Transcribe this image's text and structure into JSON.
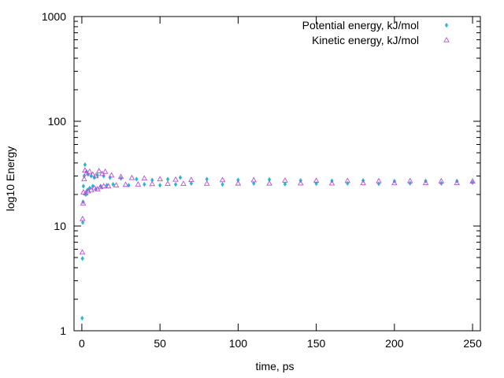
{
  "chart_data": {
    "type": "scatter",
    "title": "",
    "xlabel": "time, ps",
    "ylabel": "log10 Energy",
    "xlim": [
      -5,
      255
    ],
    "ylim": [
      1,
      1000
    ],
    "y_scale": "log",
    "x_ticks": [
      0,
      50,
      100,
      150,
      200,
      250
    ],
    "y_ticks": [
      1,
      10,
      100,
      1000
    ],
    "x_tick_labels": [
      "0",
      "50",
      "100",
      "150",
      "200",
      "250"
    ],
    "y_tick_labels": [
      "1",
      "10",
      "100",
      "1000"
    ],
    "grid": false,
    "legend_position": "top-right",
    "series": [
      {
        "name": "Potential energy, kJ/mol",
        "marker": "diamond",
        "color": "#27b8d3",
        "points": [
          [
            0.2,
            1.32
          ],
          [
            0.4,
            4.9
          ],
          [
            0.6,
            10.8
          ],
          [
            0.8,
            17.0
          ],
          [
            1.0,
            24.0
          ],
          [
            1.5,
            30.0
          ],
          [
            2.0,
            38.5
          ],
          [
            2.5,
            20.0
          ],
          [
            3.0,
            33.0
          ],
          [
            3.5,
            22.0
          ],
          [
            4.0,
            31.0
          ],
          [
            5.0,
            23.0
          ],
          [
            6.0,
            30.0
          ],
          [
            7.0,
            24.0
          ],
          [
            8.0,
            29.0
          ],
          [
            9.0,
            22.5
          ],
          [
            10.0,
            30.5
          ],
          [
            12.0,
            24.0
          ],
          [
            14.0,
            30.0
          ],
          [
            16.0,
            24.5
          ],
          [
            18.0,
            29.0
          ],
          [
            20.0,
            25.0
          ],
          [
            25.0,
            28.5
          ],
          [
            30.0,
            24.5
          ],
          [
            35.0,
            28.0
          ],
          [
            40.0,
            25.0
          ],
          [
            45.0,
            27.5
          ],
          [
            50.0,
            24.5
          ],
          [
            55.0,
            28.0
          ],
          [
            60.0,
            25.0
          ],
          [
            63.0,
            29.0
          ],
          [
            70.0,
            25.5
          ],
          [
            80.0,
            28.0
          ],
          [
            90.0,
            25.0
          ],
          [
            100.0,
            27.5
          ],
          [
            110.0,
            25.5
          ],
          [
            120.0,
            27.8
          ],
          [
            130.0,
            25.2
          ],
          [
            140.0,
            27.2
          ],
          [
            150.0,
            25.4
          ],
          [
            160.0,
            27.0
          ],
          [
            170.0,
            25.5
          ],
          [
            180.0,
            27.2
          ],
          [
            190.0,
            25.3
          ],
          [
            200.0,
            26.8
          ],
          [
            210.0,
            25.6
          ],
          [
            220.0,
            26.9
          ],
          [
            230.0,
            25.5
          ],
          [
            240.0,
            26.8
          ],
          [
            250.0,
            26.0
          ]
        ]
      },
      {
        "name": "Kinetic energy, kJ/mol",
        "marker": "triangle",
        "color": "#b94fd6",
        "points": [
          [
            0.3,
            5.6
          ],
          [
            0.5,
            11.7
          ],
          [
            0.8,
            16.5
          ],
          [
            1.0,
            21.0
          ],
          [
            1.5,
            28.0
          ],
          [
            2.0,
            34.0
          ],
          [
            2.5,
            20.5
          ],
          [
            3.0,
            32.0
          ],
          [
            4.0,
            21.5
          ],
          [
            5.0,
            33.0
          ],
          [
            6.0,
            22.0
          ],
          [
            7.0,
            31.0
          ],
          [
            8.0,
            23.0
          ],
          [
            9.0,
            30.0
          ],
          [
            10.0,
            22.5
          ],
          [
            11.0,
            33.5
          ],
          [
            12.0,
            23.5
          ],
          [
            13.0,
            31.5
          ],
          [
            14.0,
            24.0
          ],
          [
            15.0,
            33.0
          ],
          [
            17.0,
            24.0
          ],
          [
            19.0,
            30.5
          ],
          [
            22.0,
            24.5
          ],
          [
            25.0,
            29.5
          ],
          [
            28.0,
            24.8
          ],
          [
            32.0,
            28.8
          ],
          [
            36.0,
            25.0
          ],
          [
            40.0,
            28.5
          ],
          [
            45.0,
            25.2
          ],
          [
            50.0,
            28.0
          ],
          [
            55.0,
            25.3
          ],
          [
            60.0,
            27.8
          ],
          [
            65.0,
            25.3
          ],
          [
            70.0,
            27.6
          ],
          [
            80.0,
            25.4
          ],
          [
            90.0,
            27.5
          ],
          [
            100.0,
            25.5
          ],
          [
            110.0,
            27.4
          ],
          [
            120.0,
            25.5
          ],
          [
            130.0,
            27.2
          ],
          [
            140.0,
            25.6
          ],
          [
            150.0,
            27.1
          ],
          [
            160.0,
            25.6
          ],
          [
            170.0,
            27.0
          ],
          [
            180.0,
            25.7
          ],
          [
            190.0,
            26.9
          ],
          [
            200.0,
            25.7
          ],
          [
            210.0,
            26.9
          ],
          [
            220.0,
            25.8
          ],
          [
            230.0,
            26.8
          ],
          [
            240.0,
            25.8
          ],
          [
            250.0,
            26.7
          ]
        ]
      }
    ]
  }
}
